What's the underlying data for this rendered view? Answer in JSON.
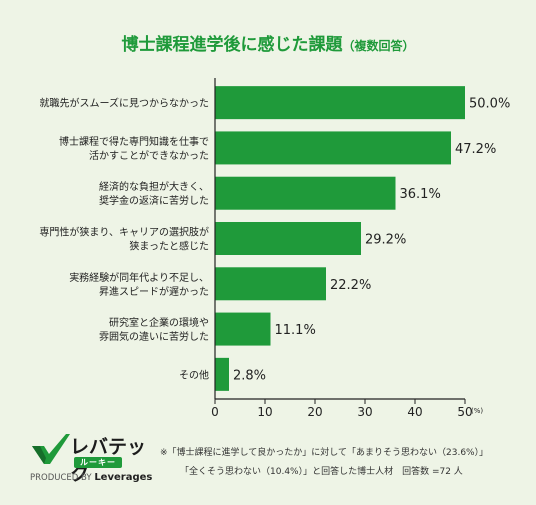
{
  "title": {
    "main": "博士課程進学後に感じた課題",
    "sub": "（複数回答）"
  },
  "chart_data": {
    "type": "bar",
    "orientation": "horizontal",
    "categories": [
      [
        "就職先がスムーズに見つからなかった"
      ],
      [
        "博士課程で得た専門知識を仕事で",
        "活かすことができなかった"
      ],
      [
        "経済的な負担が大きく、",
        "奨学金の返済に苦労した"
      ],
      [
        "専門性が狭まり、キャリアの選択肢が",
        "狭まったと感じた"
      ],
      [
        "実務経験が同年代より不足し、",
        "昇進スピードが遅かった"
      ],
      [
        "研究室と企業の環境や",
        "雰囲気の違いに苦労した"
      ],
      [
        "その他"
      ]
    ],
    "values": [
      50.0,
      47.2,
      36.1,
      29.2,
      22.2,
      11.1,
      2.8
    ],
    "value_labels": [
      "50.0%",
      "47.2%",
      "36.1%",
      "29.2%",
      "22.2%",
      "11.1%",
      "2.8%"
    ],
    "xlim": [
      0,
      50
    ],
    "xticks": [
      "0",
      "10",
      "20",
      "30",
      "40",
      "50"
    ],
    "x_unit": "(%)",
    "bar_color": "#1f9a3a",
    "grid": false
  },
  "logo": {
    "word": "レバテック",
    "sub": "ルーキー",
    "produced_prefix": "PRODUCED BY ",
    "produced_brand": "Leverages",
    "accent": "#1f9a3a"
  },
  "note": {
    "line1": "※「博士課程に進学して良かったか」に対して「あまりそう思わない（23.6%）」",
    "line2": "「全くそう思わない（10.4%）」と回答した博士人材　回答数 =72 人"
  }
}
